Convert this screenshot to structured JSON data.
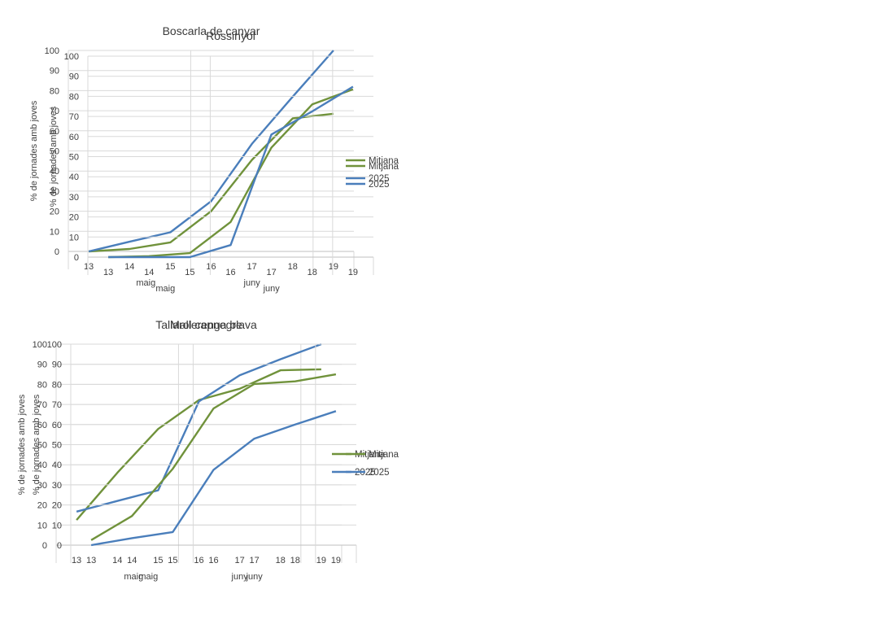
{
  "colors": {
    "Mitjana": "#70923b",
    "2025": "#4a7ebb",
    "grid": "#d9d9d9",
    "axis": "#bfbfbf"
  },
  "chart_data": [
    {
      "type": "line",
      "title": "Boscarla de canyar",
      "ylabel": "% de jornades amb joves",
      "ylim": [
        0,
        100
      ],
      "yticks": [
        0,
        10,
        20,
        30,
        40,
        50,
        60,
        70,
        80,
        90,
        100
      ],
      "x": [
        "13",
        "14",
        "15",
        "16",
        "17",
        "18",
        "19"
      ],
      "groups": [
        {
          "label": "maig"
        },
        {
          "label": "juny"
        }
      ],
      "series": [
        {
          "name": "Mitjana",
          "values": [
            0,
            1.2,
            4.5,
            20,
            45.5,
            66.2,
            68.5
          ]
        },
        {
          "name": "2025",
          "values": [
            0,
            4.8,
            9.5,
            25,
            53.5,
            77,
            100
          ]
        }
      ]
    },
    {
      "type": "line",
      "title": "Rossinyol",
      "ylabel": "% de jornades amb joves",
      "ylim": [
        0,
        100
      ],
      "yticks": [
        0,
        10,
        20,
        30,
        40,
        50,
        60,
        70,
        80,
        90,
        100
      ],
      "x": [
        "13",
        "14",
        "15",
        "16",
        "17",
        "18",
        "19"
      ],
      "groups": [
        {
          "label": "maig"
        },
        {
          "label": "juny"
        }
      ],
      "series": [
        {
          "name": "Mitjana",
          "values": [
            0,
            0.5,
            2,
            17.5,
            54.5,
            76,
            83.5
          ]
        },
        {
          "name": "2025",
          "values": [
            0,
            0,
            0,
            6,
            61,
            72.5,
            84.8
          ]
        }
      ]
    },
    {
      "type": "line",
      "title": "Tallarol capnegre",
      "ylabel": "% de jornades amb joves",
      "ylim": [
        0,
        100
      ],
      "yticks": [
        0,
        10,
        20,
        30,
        40,
        50,
        60,
        70,
        80,
        90,
        100
      ],
      "x": [
        "13",
        "14",
        "15",
        "16",
        "17",
        "18",
        "19"
      ],
      "groups": [
        {
          "label": "maig"
        },
        {
          "label": "juny"
        }
      ],
      "series": [
        {
          "name": "Mitjana",
          "values": [
            12.5,
            36,
            57.8,
            72.2,
            77.8,
            87,
            87.5
          ]
        },
        {
          "name": "2025",
          "values": [
            16.7,
            22,
            27.3,
            71.5,
            84.5,
            92.5,
            100
          ]
        }
      ]
    },
    {
      "type": "line",
      "title": "Mallerenga blava",
      "ylabel": "% de jornades amb joves",
      "ylim": [
        0,
        100
      ],
      "yticks": [
        0,
        10,
        20,
        30,
        40,
        50,
        60,
        70,
        80,
        90,
        100
      ],
      "x": [
        "13",
        "14",
        "15",
        "16",
        "17",
        "18",
        "19"
      ],
      "groups": [
        {
          "label": "maig"
        },
        {
          "label": "juny"
        }
      ],
      "series": [
        {
          "name": "Mitjana",
          "values": [
            2.5,
            14.5,
            38,
            68,
            80.2,
            81.5,
            85
          ]
        },
        {
          "name": "2025",
          "values": [
            0,
            3.5,
            6.5,
            37.5,
            53,
            60,
            66.7
          ]
        }
      ]
    }
  ]
}
